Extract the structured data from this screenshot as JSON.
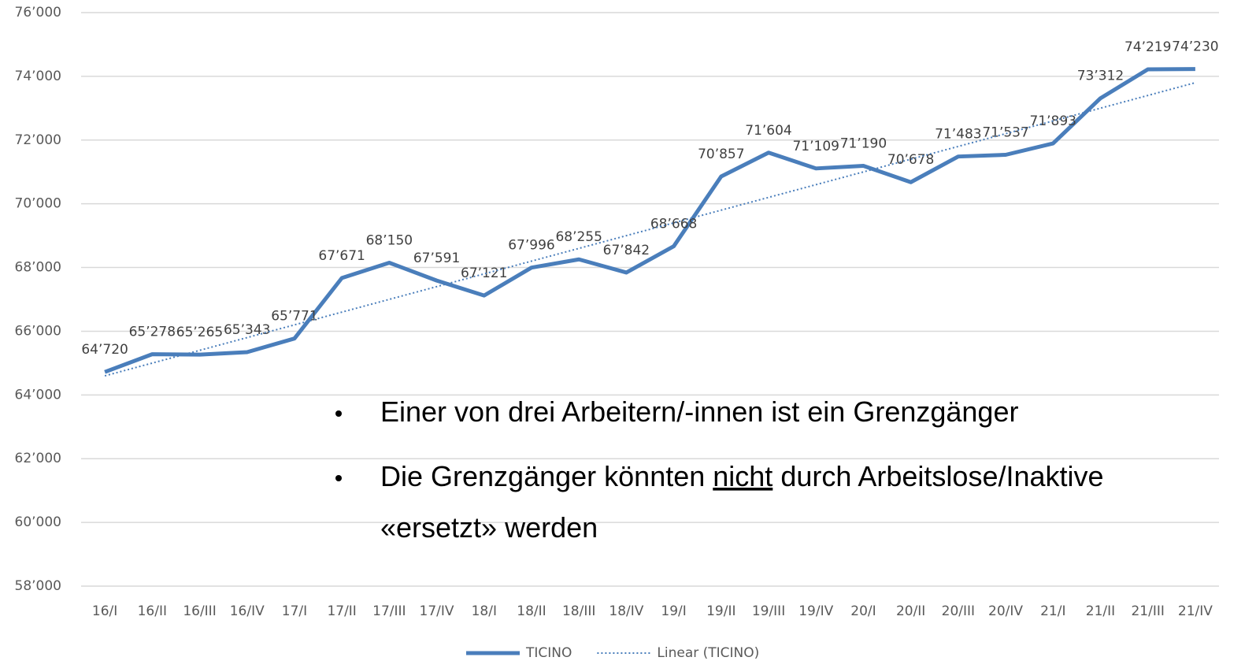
{
  "chart_data": {
    "type": "line",
    "categories": [
      "16/I",
      "16/II",
      "16/III",
      "16/IV",
      "17/I",
      "17/II",
      "17/III",
      "17/IV",
      "18/I",
      "18/II",
      "18/III",
      "18/IV",
      "19/I",
      "19/II",
      "19/III",
      "19/IV",
      "20/I",
      "20/II",
      "20/III",
      "20/IV",
      "21/I",
      "21/II",
      "21/III",
      "21/IV"
    ],
    "series": [
      {
        "name": "TICINO",
        "color": "#4a7ebb",
        "style": "solid",
        "values": [
          64720,
          65278,
          65265,
          65343,
          65771,
          67671,
          68150,
          67591,
          67121,
          67996,
          68255,
          67842,
          68668,
          70857,
          71604,
          71109,
          71190,
          70678,
          71483,
          71537,
          71893,
          73312,
          74219,
          74230
        ],
        "value_labels": [
          "64’720",
          "65’278",
          "65’265",
          "65’343",
          "65’771",
          "67’671",
          "68’150",
          "67’591",
          "67’121",
          "67’996",
          "68’255",
          "67’842",
          "68’668",
          "70’857",
          "71’604",
          "71’109",
          "71’190",
          "70’678",
          "71’483",
          "71’537",
          "71’893",
          "73’312",
          "74’219",
          "74’230"
        ]
      },
      {
        "name": "Linear (TICINO)",
        "color": "#4a7ebb",
        "style": "dotted",
        "values": [
          64600,
          65000,
          65400,
          65800,
          66200,
          66600,
          67000,
          67400,
          67800,
          68200,
          68600,
          69000,
          69400,
          69800,
          70200,
          70600,
          71000,
          71400,
          71800,
          72200,
          72600,
          73000,
          73400,
          73800
        ]
      }
    ],
    "ylim": [
      58000,
      76000
    ],
    "yticks": [
      {
        "value": 58000,
        "label": "58’000"
      },
      {
        "value": 60000,
        "label": "60’000"
      },
      {
        "value": 62000,
        "label": "62’000"
      },
      {
        "value": 64000,
        "label": "64’000"
      },
      {
        "value": 66000,
        "label": "66’000"
      },
      {
        "value": 68000,
        "label": "68’000"
      },
      {
        "value": 70000,
        "label": "70’000"
      },
      {
        "value": 72000,
        "label": "72’000"
      },
      {
        "value": 74000,
        "label": "74’000"
      },
      {
        "value": 76000,
        "label": "76’000"
      }
    ],
    "grid": true,
    "legend": "bottom",
    "annotations": [
      [
        "Einer von drei Arbeitern/-innen ist ein Grenzgänger"
      ],
      [
        "Die Grenzgänger könnten ",
        "nicht",
        " durch Arbeitslose/Inaktive"
      ],
      [
        "«ersetzt» werden"
      ]
    ]
  }
}
